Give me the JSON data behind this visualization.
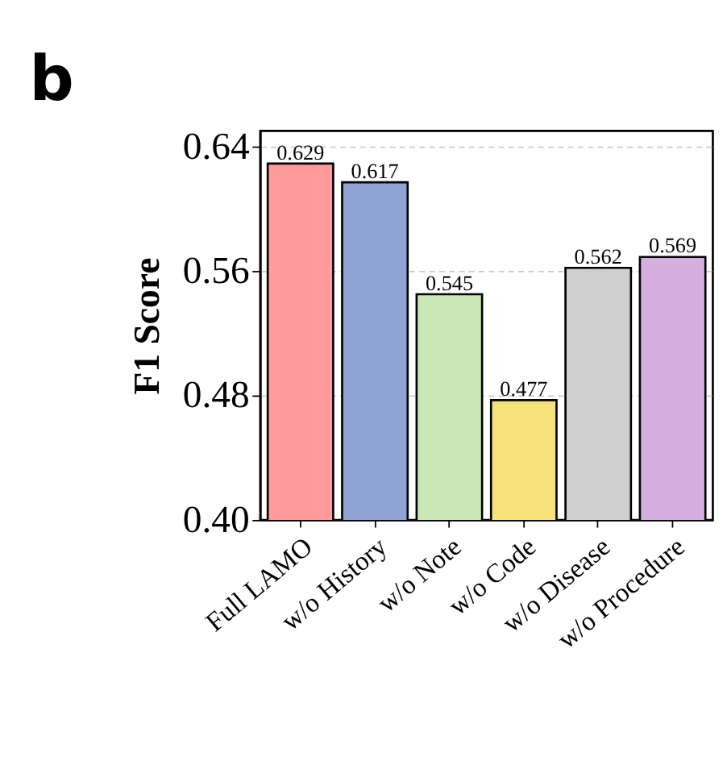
{
  "chart_data": {
    "type": "bar",
    "title": "b",
    "ylabel": "F1 Score",
    "categories": [
      "Full LAMO",
      "w/o History",
      "w/o Note",
      "w/o Code",
      "w/o Disease",
      "w/o Procedure"
    ],
    "values": [
      0.629,
      0.617,
      0.545,
      0.477,
      0.562,
      0.569
    ],
    "colors": [
      "#ff9b9b",
      "#8fa2d4",
      "#c9e8b5",
      "#f7e27a",
      "#cfcfcf",
      "#d7aee0"
    ],
    "ylim": [
      0.4,
      0.65
    ],
    "yticks": [
      {
        "value": 0.4,
        "label": "0.40"
      },
      {
        "value": 0.48,
        "label": "0.48"
      },
      {
        "value": 0.56,
        "label": "0.56"
      },
      {
        "value": 0.64,
        "label": "0.64"
      }
    ],
    "grid": "y",
    "data_labels": true
  }
}
